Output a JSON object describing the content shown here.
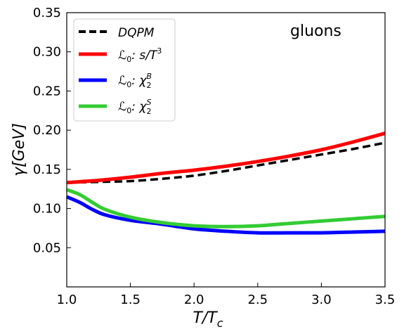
{
  "chart_data": {
    "type": "line",
    "annotation": "gluons",
    "xlabel": "T/T",
    "xlabel_sub": "c",
    "ylabel": "γ[GeV]",
    "xlim": [
      1.0,
      3.5
    ],
    "ylim": [
      0.0,
      0.35
    ],
    "xticks": [
      1.0,
      1.5,
      2.0,
      2.5,
      3.0,
      3.5
    ],
    "xtick_labels": [
      "1.0",
      "1.5",
      "2.0",
      "2.5",
      "3.0",
      "3.5"
    ],
    "yticks": [
      0.05,
      0.1,
      0.15,
      0.2,
      0.25,
      0.3,
      0.35
    ],
    "ytick_labels": [
      "0.05",
      "0.10",
      "0.15",
      "0.20",
      "0.25",
      "0.30",
      "0.35"
    ],
    "grid": false,
    "legend_position": "top-left",
    "series": [
      {
        "name": "DQPM",
        "color": "#000000",
        "dash": true,
        "x": [
          1.0,
          1.25,
          1.5,
          1.75,
          2.0,
          2.25,
          2.5,
          2.75,
          3.0,
          3.25,
          3.5
        ],
        "y": [
          0.133,
          0.134,
          0.135,
          0.138,
          0.142,
          0.148,
          0.155,
          0.162,
          0.169,
          0.176,
          0.184
        ]
      },
      {
        "name": "L0: s/T^3",
        "legend_prefix": "ℒ",
        "legend_sub0": "0",
        "legend_rest": ": s/T",
        "legend_sup": "3",
        "color": "#ff0000",
        "dash": false,
        "x": [
          1.0,
          1.25,
          1.5,
          1.75,
          2.0,
          2.25,
          2.5,
          2.75,
          3.0,
          3.25,
          3.5
        ],
        "y": [
          0.133,
          0.136,
          0.14,
          0.145,
          0.149,
          0.154,
          0.16,
          0.167,
          0.175,
          0.185,
          0.196
        ]
      },
      {
        "name": "L0: χ2B",
        "legend_prefix": "ℒ",
        "legend_sub0": "0",
        "legend_rest": ": χ",
        "legend_sub": "2",
        "legend_sup": "B",
        "color": "#0000ff",
        "dash": false,
        "x": [
          1.0,
          1.1,
          1.2,
          1.3,
          1.5,
          1.75,
          2.0,
          2.25,
          2.5,
          2.75,
          3.0,
          3.25,
          3.5
        ],
        "y": [
          0.115,
          0.108,
          0.099,
          0.092,
          0.085,
          0.08,
          0.074,
          0.071,
          0.069,
          0.069,
          0.069,
          0.07,
          0.071
        ]
      },
      {
        "name": "L0: χ2S",
        "legend_prefix": "ℒ",
        "legend_sub0": "0",
        "legend_rest": ": χ",
        "legend_sub": "2",
        "legend_sup": "S",
        "color": "#33cc33",
        "dash": false,
        "x": [
          1.0,
          1.1,
          1.2,
          1.3,
          1.5,
          1.75,
          2.0,
          2.25,
          2.5,
          2.75,
          3.0,
          3.25,
          3.5
        ],
        "y": [
          0.124,
          0.118,
          0.108,
          0.099,
          0.089,
          0.082,
          0.078,
          0.077,
          0.078,
          0.081,
          0.084,
          0.087,
          0.09
        ]
      }
    ]
  }
}
